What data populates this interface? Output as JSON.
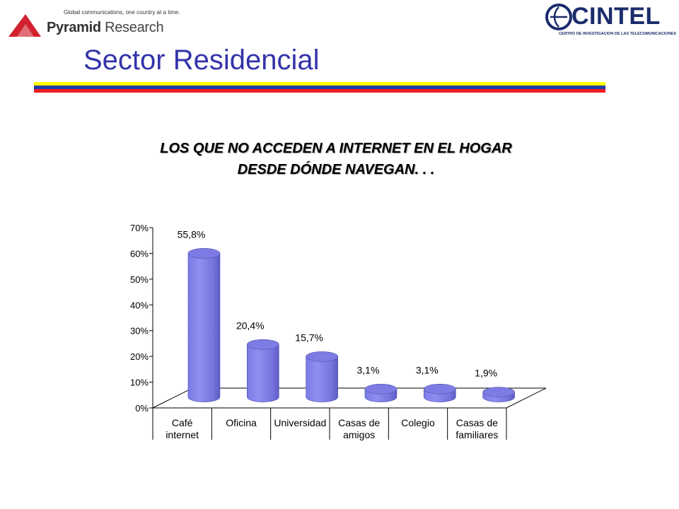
{
  "header": {
    "left_logo": {
      "tagline": "Global communications, one country at a time.",
      "brand_word1": "Pyramid",
      "brand_word2": "Research"
    },
    "right_logo": {
      "wordmark": "CINTEL",
      "subline": "CENTRO DE INVESTIGACION DE LAS TELECOMUNICACIONES"
    }
  },
  "page": {
    "title": "Sector Residencial"
  },
  "stripe_colors": [
    "#ffff00",
    "#1f3fa6",
    "#ee1c25"
  ],
  "chart_data": {
    "type": "bar",
    "title_lines": [
      "LOS QUE NO ACCEDEN A INTERNET EN EL HOGAR",
      "DESDE DÓNDE NAVEGAN. . ."
    ],
    "categories": [
      [
        "Café",
        "internet"
      ],
      [
        "Oficina"
      ],
      [
        "Universidad"
      ],
      [
        "Casas de",
        "amigos"
      ],
      [
        "Colegio"
      ],
      [
        "Casas de",
        "familiares"
      ]
    ],
    "values": [
      55.8,
      20.4,
      15.7,
      3.1,
      3.1,
      1.9
    ],
    "value_labels": [
      "55,8%",
      "20,4%",
      "15,7%",
      "3,1%",
      "3,1%",
      "1,9%"
    ],
    "yticks": [
      "0%",
      "10%",
      "20%",
      "30%",
      "40%",
      "50%",
      "60%",
      "70%"
    ],
    "ylim": [
      0,
      70
    ],
    "bar_color": "#8f8ff0",
    "grid": false,
    "legend": "none"
  }
}
